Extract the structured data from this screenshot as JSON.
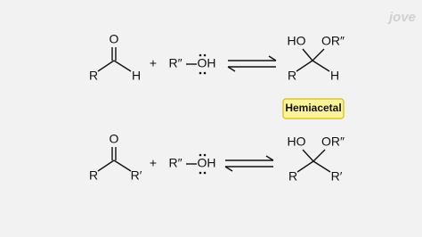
{
  "reactions": [
    {
      "reactant": {
        "oxygen": "O",
        "left": "R",
        "right": "H"
      },
      "plus": "+",
      "alcohol": {
        "group": "R″",
        "hydroxyl": "OH"
      },
      "product": {
        "hydroxyl": "HO",
        "ether": "OR″",
        "left": "R",
        "right": "H"
      }
    },
    {
      "reactant": {
        "oxygen": "O",
        "left": "R",
        "right": "R′"
      },
      "plus": "+",
      "alcohol": {
        "group": "R″",
        "hydroxyl": "OH"
      },
      "product": {
        "hydroxyl": "HO",
        "ether": "OR″",
        "left": "R",
        "right": "R′"
      }
    }
  ],
  "label": "Hemiacetal",
  "logo": "jove"
}
